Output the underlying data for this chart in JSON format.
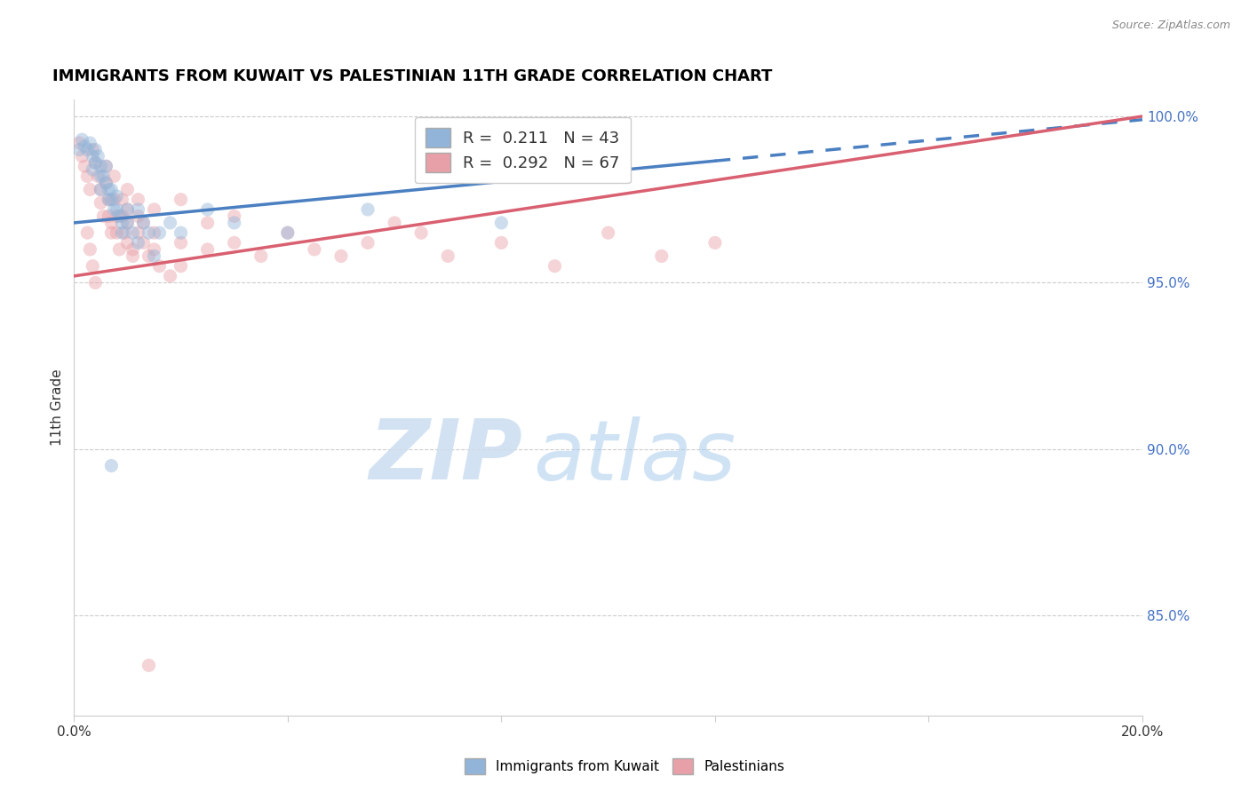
{
  "title": "IMMIGRANTS FROM KUWAIT VS PALESTINIAN 11TH GRADE CORRELATION CHART",
  "source": "Source: ZipAtlas.com",
  "ylabel": "11th Grade",
  "watermark_zip": "ZIP",
  "watermark_atlas": "atlas",
  "blue_color": "#92b4d9",
  "pink_color": "#e8a0a8",
  "blue_line_color": "#4a7fc1",
  "pink_line_color": "#d96070",
  "blue_scatter": [
    [
      0.1,
      99.0
    ],
    [
      0.15,
      99.3
    ],
    [
      0.2,
      99.1
    ],
    [
      0.25,
      99.0
    ],
    [
      0.3,
      99.2
    ],
    [
      0.35,
      98.8
    ],
    [
      0.35,
      98.4
    ],
    [
      0.4,
      99.0
    ],
    [
      0.4,
      98.6
    ],
    [
      0.45,
      98.8
    ],
    [
      0.5,
      98.5
    ],
    [
      0.5,
      98.2
    ],
    [
      0.5,
      97.8
    ],
    [
      0.55,
      98.2
    ],
    [
      0.6,
      98.5
    ],
    [
      0.6,
      98.0
    ],
    [
      0.65,
      97.8
    ],
    [
      0.65,
      97.5
    ],
    [
      0.7,
      97.8
    ],
    [
      0.7,
      97.5
    ],
    [
      0.75,
      97.2
    ],
    [
      0.8,
      97.6
    ],
    [
      0.8,
      97.2
    ],
    [
      0.85,
      97.0
    ],
    [
      0.9,
      96.8
    ],
    [
      0.9,
      96.5
    ],
    [
      1.0,
      97.2
    ],
    [
      1.0,
      96.8
    ],
    [
      1.1,
      96.5
    ],
    [
      1.2,
      97.2
    ],
    [
      1.2,
      96.2
    ],
    [
      1.3,
      96.8
    ],
    [
      1.4,
      96.5
    ],
    [
      1.5,
      95.8
    ],
    [
      1.6,
      96.5
    ],
    [
      1.8,
      96.8
    ],
    [
      2.0,
      96.5
    ],
    [
      2.5,
      97.2
    ],
    [
      3.0,
      96.8
    ],
    [
      4.0,
      96.5
    ],
    [
      5.5,
      97.2
    ],
    [
      8.0,
      96.8
    ],
    [
      0.7,
      89.5
    ]
  ],
  "pink_scatter": [
    [
      0.1,
      99.2
    ],
    [
      0.15,
      98.8
    ],
    [
      0.2,
      98.5
    ],
    [
      0.25,
      98.2
    ],
    [
      0.3,
      97.8
    ],
    [
      0.35,
      99.0
    ],
    [
      0.4,
      98.6
    ],
    [
      0.45,
      98.2
    ],
    [
      0.5,
      97.8
    ],
    [
      0.5,
      97.4
    ],
    [
      0.55,
      97.0
    ],
    [
      0.6,
      98.5
    ],
    [
      0.6,
      98.0
    ],
    [
      0.65,
      97.5
    ],
    [
      0.65,
      97.0
    ],
    [
      0.7,
      96.8
    ],
    [
      0.7,
      96.5
    ],
    [
      0.75,
      98.2
    ],
    [
      0.75,
      97.5
    ],
    [
      0.8,
      97.0
    ],
    [
      0.8,
      96.5
    ],
    [
      0.85,
      96.0
    ],
    [
      0.9,
      97.5
    ],
    [
      0.9,
      97.0
    ],
    [
      0.95,
      96.5
    ],
    [
      1.0,
      97.8
    ],
    [
      1.0,
      97.2
    ],
    [
      1.0,
      96.8
    ],
    [
      1.0,
      96.2
    ],
    [
      1.1,
      96.0
    ],
    [
      1.1,
      95.8
    ],
    [
      1.2,
      97.5
    ],
    [
      1.2,
      97.0
    ],
    [
      1.2,
      96.5
    ],
    [
      1.3,
      96.8
    ],
    [
      1.3,
      96.2
    ],
    [
      1.4,
      95.8
    ],
    [
      1.5,
      97.2
    ],
    [
      1.5,
      96.5
    ],
    [
      1.5,
      96.0
    ],
    [
      1.6,
      95.5
    ],
    [
      1.8,
      95.2
    ],
    [
      2.0,
      97.5
    ],
    [
      2.0,
      96.2
    ],
    [
      2.0,
      95.5
    ],
    [
      2.5,
      96.8
    ],
    [
      2.5,
      96.0
    ],
    [
      3.0,
      97.0
    ],
    [
      3.0,
      96.2
    ],
    [
      3.5,
      95.8
    ],
    [
      4.0,
      96.5
    ],
    [
      4.5,
      96.0
    ],
    [
      5.0,
      95.8
    ],
    [
      5.5,
      96.2
    ],
    [
      6.0,
      96.8
    ],
    [
      6.5,
      96.5
    ],
    [
      7.0,
      95.8
    ],
    [
      8.0,
      96.2
    ],
    [
      9.0,
      95.5
    ],
    [
      10.0,
      96.5
    ],
    [
      11.0,
      95.8
    ],
    [
      12.0,
      96.2
    ],
    [
      1.4,
      83.5
    ],
    [
      0.25,
      96.5
    ],
    [
      0.3,
      96.0
    ],
    [
      0.35,
      95.5
    ],
    [
      0.4,
      95.0
    ]
  ],
  "xlim": [
    0.0,
    20.0
  ],
  "ylim": [
    82.0,
    100.5
  ],
  "xticks": [
    0.0,
    4.0,
    8.0,
    12.0,
    16.0,
    20.0
  ],
  "xtick_labels": [
    "0.0%",
    "",
    "",
    "",
    "",
    "20.0%"
  ],
  "yticks_right": [
    100.0,
    95.0,
    90.0,
    85.0
  ],
  "ytick_right_labels": [
    "100.0%",
    "95.0%",
    "90.0%",
    "85.0%"
  ],
  "grid_color": "#cccccc",
  "background_color": "#ffffff",
  "title_fontsize": 13,
  "axis_fontsize": 11,
  "scatter_size": 120,
  "scatter_alpha": 0.45,
  "line_width": 2.5,
  "blue_line_start_x": 0.0,
  "blue_line_end_x": 20.0,
  "blue_line_solid_end": 12.0,
  "pink_line_start_x": 0.0,
  "pink_line_end_x": 20.0
}
